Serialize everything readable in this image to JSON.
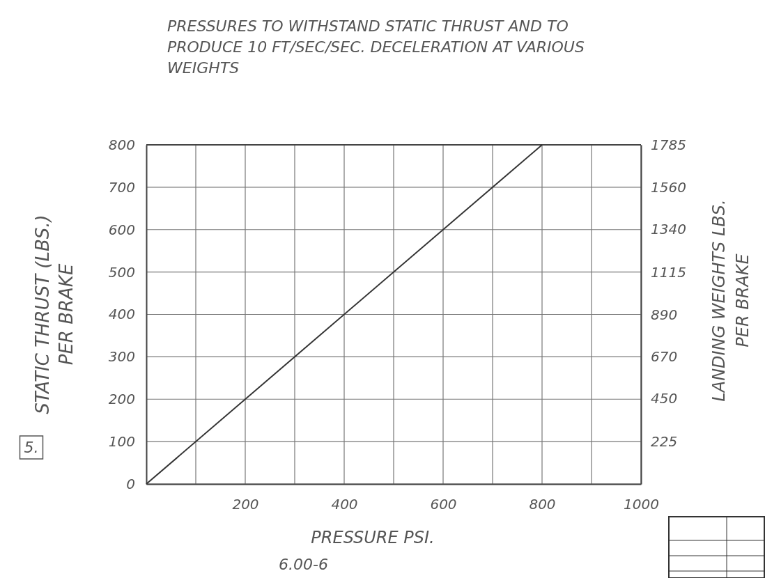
{
  "chart_data": {
    "type": "line",
    "title": "PRESSURES TO WITHSTAND STATIC THRUST AND TO PRODUCE 10 FT/SEC/SEC. DECELERATION AT VARIOUS WEIGHTS",
    "xlabel": "PRESSURE PSI.",
    "ylabel": "STATIC THRUST (LBS.) PER BRAKE",
    "y2label": "LANDING WEIGHTS LBS. PER BRAKE",
    "annotations": [
      "5.",
      "6.00-6"
    ],
    "xlim": [
      0,
      1000
    ],
    "xticks": [
      {
        "value": 100,
        "label": null
      },
      200,
      {
        "value": 300,
        "label": null
      },
      400,
      {
        "value": 500,
        "label": null
      },
      600,
      {
        "value": 700,
        "label": null
      },
      800,
      {
        "value": 900,
        "label": null
      },
      1000
    ],
    "ylim": [
      0,
      800
    ],
    "yticks": [
      0,
      100,
      200,
      300,
      400,
      500,
      600,
      700,
      800
    ],
    "y2lim": [
      0,
      1785
    ],
    "y2ticks": [
      225,
      450,
      670,
      890,
      1115,
      1340,
      1560,
      1785
    ],
    "grid": true,
    "series": [
      {
        "x": [
          0,
          800
        ],
        "values": [
          0,
          800
        ],
        "color": "#333333"
      }
    ]
  }
}
